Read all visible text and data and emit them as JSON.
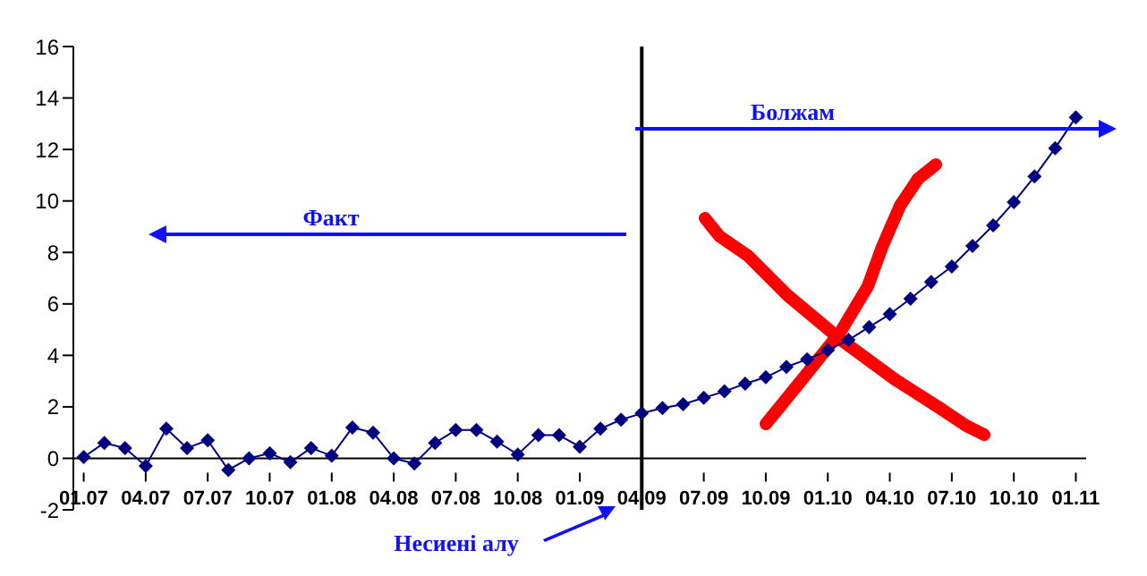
{
  "chart_data": {
    "type": "line",
    "categories": [
      "01.07",
      null,
      null,
      "04.07",
      null,
      null,
      "07.07",
      null,
      null,
      "10.07",
      null,
      null,
      "01.08",
      null,
      null,
      "04.08",
      null,
      null,
      "07.08",
      null,
      null,
      "10.08",
      null,
      null,
      "01.09",
      null,
      null,
      "04.09",
      null,
      null,
      "07.09",
      null,
      null,
      "10.09",
      null,
      null,
      "01.10",
      null,
      null,
      "04.10",
      null,
      null,
      "07.10",
      null,
      null,
      "10.10",
      null,
      null,
      "01.11"
    ],
    "series": [
      {
        "color": "#000080",
        "values": [
          0.05,
          0.6,
          0.4,
          -0.3,
          1.15,
          0.4,
          0.7,
          -0.45,
          0.0,
          0.2,
          -0.15,
          0.4,
          0.1,
          1.2,
          1.0,
          0.0,
          -0.2,
          0.6,
          1.1,
          1.1,
          0.65,
          0.15,
          0.9,
          0.9,
          0.45,
          1.15,
          1.5,
          1.75,
          1.95,
          2.1,
          2.35,
          2.6,
          2.9,
          3.15,
          3.55,
          3.85,
          4.2,
          4.6,
          5.1,
          5.6,
          6.2,
          6.85,
          7.45,
          8.25,
          9.05,
          9.95,
          10.95,
          12.05,
          13.25
        ]
      }
    ],
    "ylim": [
      -2,
      16
    ],
    "yticks": [
      -2,
      0,
      2,
      4,
      6,
      8,
      10,
      12,
      14,
      16
    ],
    "marker": "diamond",
    "line_style": "solid",
    "grid": false,
    "legend": false,
    "ref_lines": [
      {
        "axis": "x",
        "value": "04.09",
        "color": "#000000"
      }
    ],
    "annotations": [
      "Факт",
      "Болжам",
      "Несиені алу"
    ]
  }
}
